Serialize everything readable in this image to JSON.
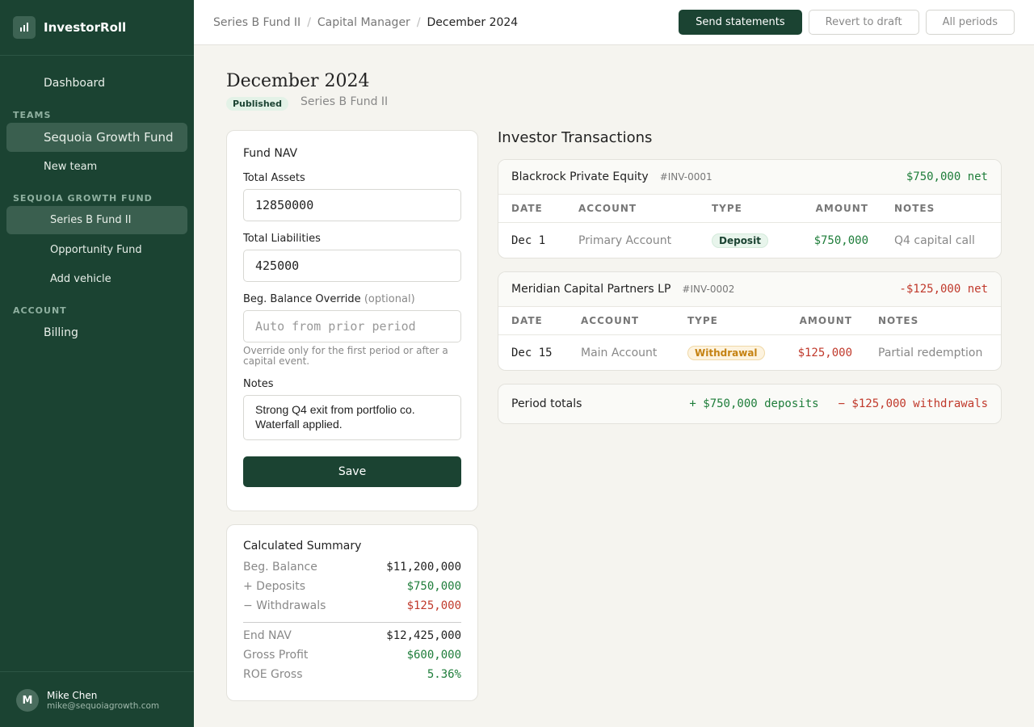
{
  "sidebar": {
    "brand": "InvestorRoll",
    "top_nav": [
      "Dashboard"
    ],
    "sections": [
      {
        "title": "TEAMS",
        "items": [
          "Sequoia Growth Fund",
          "New team"
        ]
      },
      {
        "title": "SEQUOIA GROWTH FUND",
        "items": [
          "Series B Fund II",
          "Opportunity Fund",
          "Add vehicle"
        ]
      },
      {
        "title": "ACCOUNT",
        "items": [
          "Billing"
        ]
      }
    ],
    "user": {
      "initial": "M",
      "name": "Mike Chen",
      "email": "mike@sequoiagrowth.com"
    }
  },
  "header": {
    "breadcrumbs": [
      "Series B Fund II",
      "Capital Manager",
      "December 2024"
    ],
    "actions": [
      "Send statements",
      "Revert to draft",
      "All periods"
    ]
  },
  "page": {
    "title": "December 2024",
    "status": "Published",
    "subtitle": "Series B Fund II"
  },
  "fund_nav": {
    "title": "Fund NAV",
    "fields": [
      {
        "label": "Total Assets",
        "value": "12850000"
      },
      {
        "label": "Total Liabilities",
        "value": "425000"
      },
      {
        "label": "Beg. Balance Override",
        "label_note": "(optional)",
        "placeholder": "Auto from prior period",
        "help": "Override only for the first period or after a capital event."
      },
      {
        "label": "Notes",
        "value": "Strong Q4 exit from portfolio co. Waterfall applied."
      }
    ],
    "button": "Save"
  },
  "summary": {
    "title": "Calculated Summary",
    "rows": [
      [
        "Beg. Balance",
        "$11,200,000"
      ],
      [
        "+ Deposits",
        "$750,000"
      ],
      [
        "− Withdrawals",
        "$125,000"
      ],
      [
        "End NAV",
        "$12,425,000"
      ],
      [
        "Gross Profit",
        "$600,000"
      ],
      [
        "ROE Gross",
        "5.36%"
      ]
    ]
  },
  "transactions": {
    "title": "Investor Transactions",
    "columns": [
      "DATE",
      "ACCOUNT",
      "TYPE",
      "AMOUNT",
      "NOTES"
    ],
    "groups": [
      {
        "investor": "Blackrock Private Equity",
        "id": "#INV-0001",
        "net": "$750,000 net",
        "rows": [
          [
            "Dec 1",
            "Primary Account",
            "Deposit",
            "$750,000",
            "Q4 capital call"
          ]
        ]
      },
      {
        "investor": "Meridian Capital Partners LP",
        "id": "#INV-0002",
        "net": "-$125,000 net",
        "rows": [
          [
            "Dec 15",
            "Main Account",
            "Withdrawal",
            "$125,000",
            "Partial redemption"
          ]
        ]
      }
    ],
    "totals": {
      "label": "Period totals",
      "deposits": "+ $750,000 deposits",
      "withdrawals": "− $125,000 withdrawals"
    }
  }
}
